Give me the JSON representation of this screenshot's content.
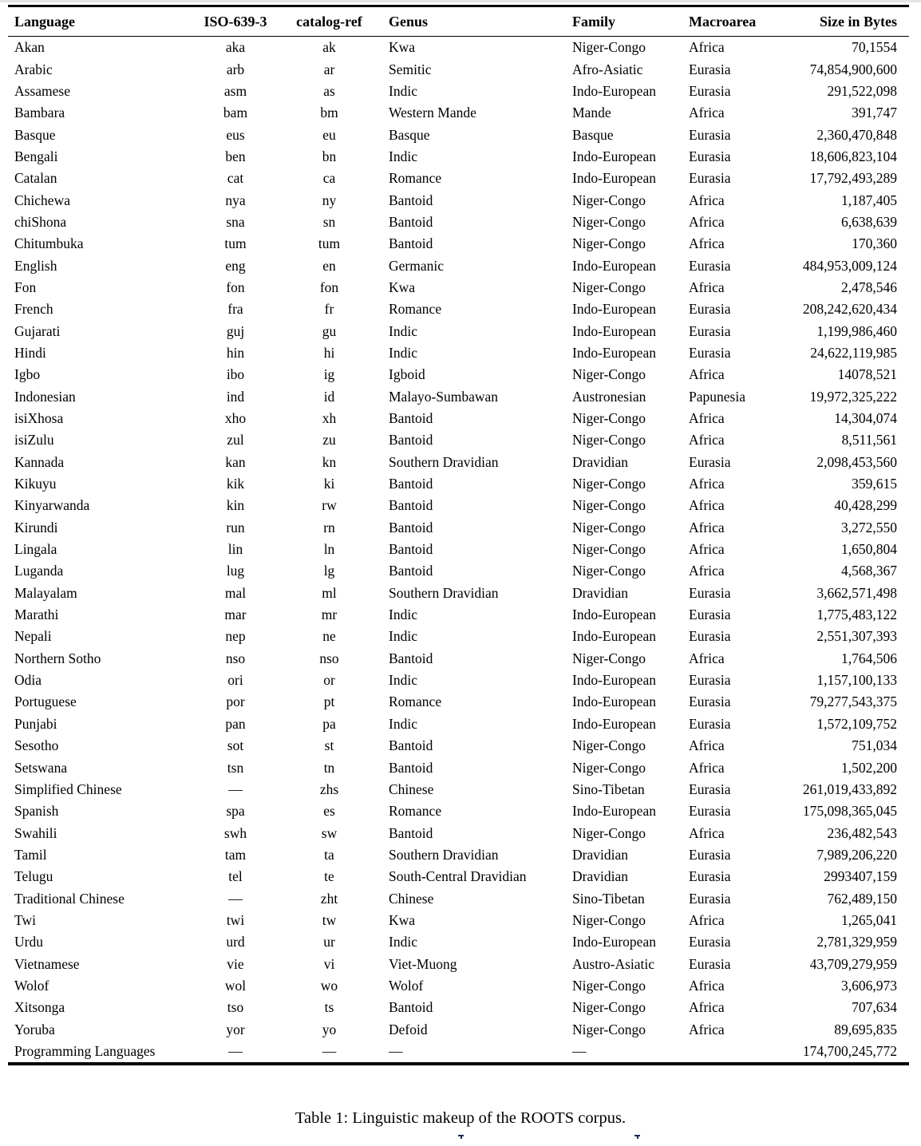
{
  "page": {
    "caption": "Table 1: Linguistic makeup of the ROOTS corpus."
  },
  "table": {
    "columns": [
      "Language",
      "ISO-639-3",
      "catalog-ref",
      "Genus",
      "Family",
      "Macroarea",
      "Size in Bytes"
    ],
    "rows": [
      [
        "Akan",
        "aka",
        "ak",
        "Kwa",
        "Niger-Congo",
        "Africa",
        "70,1554"
      ],
      [
        "Arabic",
        "arb",
        "ar",
        "Semitic",
        "Afro-Asiatic",
        "Eurasia",
        "74,854,900,600"
      ],
      [
        "Assamese",
        "asm",
        "as",
        "Indic",
        "Indo-European",
        "Eurasia",
        "291,522,098"
      ],
      [
        "Bambara",
        "bam",
        "bm",
        "Western Mande",
        "Mande",
        "Africa",
        "391,747"
      ],
      [
        "Basque",
        "eus",
        "eu",
        "Basque",
        "Basque",
        "Eurasia",
        "2,360,470,848"
      ],
      [
        "Bengali",
        "ben",
        "bn",
        "Indic",
        "Indo-European",
        "Eurasia",
        "18,606,823,104"
      ],
      [
        "Catalan",
        "cat",
        "ca",
        "Romance",
        "Indo-European",
        "Eurasia",
        "17,792,493,289"
      ],
      [
        "Chichewa",
        "nya",
        "ny",
        "Bantoid",
        "Niger-Congo",
        "Africa",
        "1,187,405"
      ],
      [
        "chiShona",
        "sna",
        "sn",
        "Bantoid",
        "Niger-Congo",
        "Africa",
        "6,638,639"
      ],
      [
        "Chitumbuka",
        "tum",
        "tum",
        "Bantoid",
        "Niger-Congo",
        "Africa",
        "170,360"
      ],
      [
        "English",
        "eng",
        "en",
        "Germanic",
        "Indo-European",
        "Eurasia",
        "484,953,009,124"
      ],
      [
        "Fon",
        "fon",
        "fon",
        "Kwa",
        "Niger-Congo",
        "Africa",
        "2,478,546"
      ],
      [
        "French",
        "fra",
        "fr",
        "Romance",
        "Indo-European",
        "Eurasia",
        "208,242,620,434"
      ],
      [
        "Gujarati",
        "guj",
        "gu",
        "Indic",
        "Indo-European",
        "Eurasia",
        "1,199,986,460"
      ],
      [
        "Hindi",
        "hin",
        "hi",
        "Indic",
        "Indo-European",
        "Eurasia",
        "24,622,119,985"
      ],
      [
        "Igbo",
        "ibo",
        "ig",
        "Igboid",
        "Niger-Congo",
        "Africa",
        "14078,521"
      ],
      [
        "Indonesian",
        "ind",
        "id",
        "Malayo-Sumbawan",
        "Austronesian",
        "Papunesia",
        "19,972,325,222"
      ],
      [
        "isiXhosa",
        "xho",
        "xh",
        "Bantoid",
        "Niger-Congo",
        "Africa",
        "14,304,074"
      ],
      [
        "isiZulu",
        "zul",
        "zu",
        "Bantoid",
        "Niger-Congo",
        "Africa",
        "8,511,561"
      ],
      [
        "Kannada",
        "kan",
        "kn",
        "Southern Dravidian",
        "Dravidian",
        "Eurasia",
        "2,098,453,560"
      ],
      [
        "Kikuyu",
        "kik",
        "ki",
        "Bantoid",
        "Niger-Congo",
        "Africa",
        "359,615"
      ],
      [
        "Kinyarwanda",
        "kin",
        "rw",
        "Bantoid",
        "Niger-Congo",
        "Africa",
        "40,428,299"
      ],
      [
        "Kirundi",
        "run",
        "rn",
        "Bantoid",
        "Niger-Congo",
        "Africa",
        "3,272,550"
      ],
      [
        "Lingala",
        "lin",
        "ln",
        "Bantoid",
        "Niger-Congo",
        "Africa",
        "1,650,804"
      ],
      [
        "Luganda",
        "lug",
        "lg",
        "Bantoid",
        "Niger-Congo",
        "Africa",
        "4,568,367"
      ],
      [
        "Malayalam",
        "mal",
        "ml",
        "Southern Dravidian",
        "Dravidian",
        "Eurasia",
        "3,662,571,498"
      ],
      [
        "Marathi",
        "mar",
        "mr",
        "Indic",
        "Indo-European",
        "Eurasia",
        "1,775,483,122"
      ],
      [
        "Nepali",
        "nep",
        "ne",
        "Indic",
        "Indo-European",
        "Eurasia",
        "2,551,307,393"
      ],
      [
        "Northern Sotho",
        "nso",
        "nso",
        "Bantoid",
        "Niger-Congo",
        "Africa",
        "1,764,506"
      ],
      [
        "Odia",
        "ori",
        "or",
        "Indic",
        "Indo-European",
        "Eurasia",
        "1,157,100,133"
      ],
      [
        "Portuguese",
        "por",
        "pt",
        "Romance",
        "Indo-European",
        "Eurasia",
        "79,277,543,375"
      ],
      [
        "Punjabi",
        "pan",
        "pa",
        "Indic",
        "Indo-European",
        "Eurasia",
        "1,572,109,752"
      ],
      [
        "Sesotho",
        "sot",
        "st",
        "Bantoid",
        "Niger-Congo",
        "Africa",
        "751,034"
      ],
      [
        "Setswana",
        "tsn",
        "tn",
        "Bantoid",
        "Niger-Congo",
        "Africa",
        "1,502,200"
      ],
      [
        "Simplified Chinese",
        "—",
        "zhs",
        "Chinese",
        "Sino-Tibetan",
        "Eurasia",
        "261,019,433,892"
      ],
      [
        "Spanish",
        "spa",
        "es",
        "Romance",
        "Indo-European",
        "Eurasia",
        "175,098,365,045"
      ],
      [
        "Swahili",
        "swh",
        "sw",
        "Bantoid",
        "Niger-Congo",
        "Africa",
        "236,482,543"
      ],
      [
        "Tamil",
        "tam",
        "ta",
        "Southern Dravidian",
        "Dravidian",
        "Eurasia",
        "7,989,206,220"
      ],
      [
        "Telugu",
        "tel",
        "te",
        "South-Central Dravidian",
        "Dravidian",
        "Eurasia",
        "2993407,159"
      ],
      [
        "Traditional Chinese",
        "—",
        "zht",
        "Chinese",
        "Sino-Tibetan",
        "Eurasia",
        "762,489,150"
      ],
      [
        "Twi",
        "twi",
        "tw",
        "Kwa",
        "Niger-Congo",
        "Africa",
        "1,265,041"
      ],
      [
        "Urdu",
        "urd",
        "ur",
        "Indic",
        "Indo-European",
        "Eurasia",
        "2,781,329,959"
      ],
      [
        "Vietnamese",
        "vie",
        "vi",
        "Viet-Muong",
        "Austro-Asiatic",
        "Eurasia",
        "43,709,279,959"
      ],
      [
        "Wolof",
        "wol",
        "wo",
        "Wolof",
        "Niger-Congo",
        "Africa",
        "3,606,973"
      ],
      [
        "Xitsonga",
        "tso",
        "ts",
        "Bantoid",
        "Niger-Congo",
        "Africa",
        "707,634"
      ],
      [
        "Yoruba",
        "yor",
        "yo",
        "Defoid",
        "Niger-Congo",
        "Africa",
        "89,695,835"
      ],
      [
        "Programming Languages",
        "—",
        "—",
        "—",
        "—",
        "",
        "174,700,245,772"
      ]
    ]
  }
}
